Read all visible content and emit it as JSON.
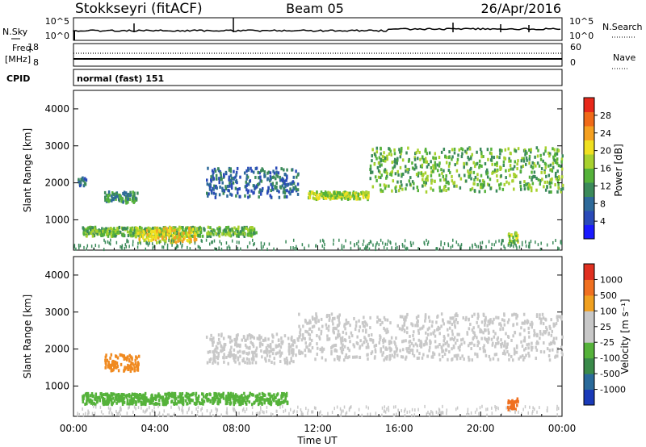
{
  "header": {
    "station": "Stokkseyri (fitACF)",
    "beam": "Beam 05",
    "date": "26/Apr/2016"
  },
  "nsky_panel": {
    "left_label": "N.Sky",
    "right_label": "N.Search",
    "left_ticks": [
      "10^5",
      "10^0"
    ],
    "right_ticks": [
      "10^5",
      "10^0"
    ]
  },
  "freq_panel": {
    "left_label_top": "Freq.",
    "left_label_bottom": "[MHz]",
    "right_label": "Nave",
    "left_ticks": [
      "18",
      "8"
    ],
    "right_ticks": [
      "60",
      "0"
    ]
  },
  "cpid": {
    "label": "CPID",
    "text": "normal (fast) 151"
  },
  "chart_data": [
    {
      "type": "heatmap",
      "quantity": "Power",
      "ylabel": "Slant Range [km]",
      "ylim": [
        180,
        4500
      ],
      "yticks": [
        "1000",
        "2000",
        "3000",
        "4000"
      ],
      "xlim_hours": [
        0,
        24
      ],
      "colorbar": {
        "label": "Power [dB]",
        "ticks": [
          "28",
          "24",
          "20",
          "16",
          "12",
          "8",
          "4"
        ],
        "colors": [
          "#1a1aff",
          "#2a4ab8",
          "#2e6a9a",
          "#3b8a5a",
          "#55b23a",
          "#a8d12e",
          "#f0e020",
          "#f5a020",
          "#f06a18",
          "#e8281a"
        ]
      },
      "echo_bands": [
        {
          "start": 0.2,
          "end": 0.6,
          "range_lo": 1900,
          "range_hi": 2150,
          "level": 2
        },
        {
          "start": 1.5,
          "end": 3.1,
          "range_lo": 1450,
          "range_hi": 1750,
          "level": 3
        },
        {
          "start": 0.4,
          "end": 9.0,
          "range_lo": 550,
          "range_hi": 800,
          "level": 4
        },
        {
          "start": 3.0,
          "end": 6.0,
          "range_lo": 380,
          "range_hi": 780,
          "level": 6
        },
        {
          "start": 6.5,
          "end": 11.0,
          "range_lo": 1600,
          "range_hi": 2400,
          "level": 2
        },
        {
          "start": 11.5,
          "end": 14.5,
          "range_lo": 1550,
          "range_hi": 1750,
          "level": 5
        },
        {
          "start": 14.5,
          "end": 24.0,
          "range_lo": 1750,
          "range_hi": 2950,
          "level": 4
        },
        {
          "start": 21.3,
          "end": 21.8,
          "range_lo": 350,
          "range_hi": 650,
          "level": 5
        }
      ]
    },
    {
      "type": "heatmap",
      "quantity": "Velocity",
      "ylabel": "Slant Range [km]",
      "xlabel": "Time UT",
      "ylim": [
        180,
        4500
      ],
      "yticks": [
        "1000",
        "2000",
        "3000",
        "4000"
      ],
      "xticks": [
        "00:00",
        "04:00",
        "08:00",
        "12:00",
        "16:00",
        "20:00",
        "00:00"
      ],
      "xlim_hours": [
        0,
        24
      ],
      "colorbar": {
        "label": "Velocity [m s⁻¹]",
        "ticks": [
          "1000",
          "500",
          "100",
          "25",
          "-25",
          "-100",
          "-500",
          "-1000"
        ],
        "colors": [
          "#1a3ab8",
          "#2a6a9a",
          "#3a8a4a",
          "#55b23a",
          "#c8c8c8",
          "#c8c8c8",
          "#f0a020",
          "#f07020",
          "#e03020"
        ]
      },
      "echo_bands": [
        {
          "start": 1.5,
          "end": 3.2,
          "range_lo": 1400,
          "range_hi": 1850,
          "color": "#f08a20"
        },
        {
          "start": 0.4,
          "end": 10.5,
          "range_lo": 500,
          "range_hi": 800,
          "color": "#55b23a"
        },
        {
          "start": 6.5,
          "end": 11.0,
          "range_lo": 1600,
          "range_hi": 2400,
          "color": "#c8c8c8"
        },
        {
          "start": 11.0,
          "end": 24.0,
          "range_lo": 1700,
          "range_hi": 2950,
          "color": "#c8c8c8"
        },
        {
          "start": 21.3,
          "end": 21.8,
          "range_lo": 350,
          "range_hi": 650,
          "color": "#f07020"
        }
      ]
    }
  ]
}
